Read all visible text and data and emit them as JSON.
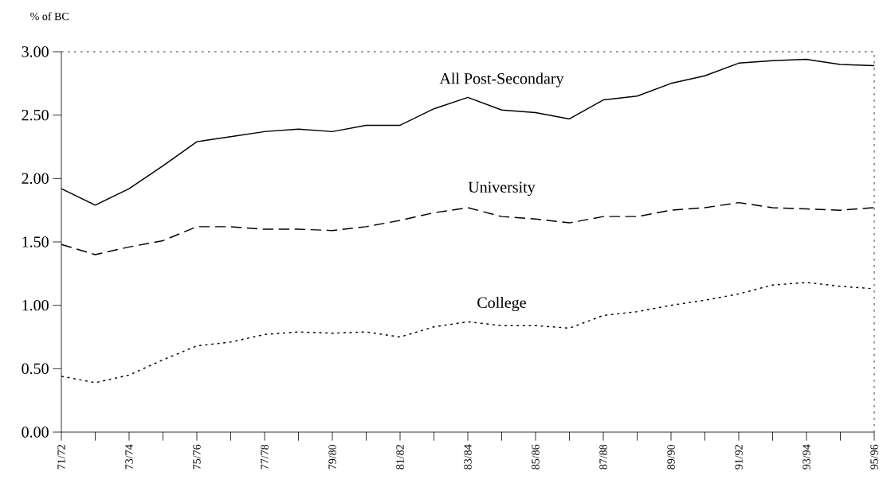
{
  "chart_data": {
    "type": "line",
    "ylabel": "% of BC",
    "categories": [
      "71/72",
      null,
      "73/74",
      null,
      "75/76",
      null,
      "77/78",
      null,
      "79/80",
      null,
      "81/82",
      null,
      "83/84",
      null,
      "85/86",
      null,
      "87/88",
      null,
      "89/90",
      null,
      "91/92",
      null,
      "93/94",
      null,
      "95/96"
    ],
    "ylim": [
      0,
      3
    ],
    "yticks": [
      {
        "value": 0,
        "label": "0.00"
      },
      {
        "value": 0.5,
        "label": "0.50"
      },
      {
        "value": 1,
        "label": "1.00"
      },
      {
        "value": 1.5,
        "label": "1.50"
      },
      {
        "value": 2,
        "label": "2.00"
      },
      {
        "value": 2.5,
        "label": "2.50"
      },
      {
        "value": 3,
        "label": "3.00"
      }
    ],
    "grid": false,
    "legend": false,
    "marker": "none",
    "series": [
      {
        "name": "All Post-Secondary",
        "color": "#000000",
        "line_style": "solid",
        "values": [
          1.92,
          1.79,
          1.92,
          2.1,
          2.29,
          2.33,
          2.37,
          2.39,
          2.37,
          2.42,
          2.42,
          2.55,
          2.64,
          2.54,
          2.52,
          2.47,
          2.62,
          2.65,
          2.75,
          2.81,
          2.91,
          2.93,
          2.94,
          2.9,
          2.89
        ]
      },
      {
        "name": "University",
        "color": "#000000",
        "line_style": "dashed",
        "values": [
          1.48,
          1.4,
          1.46,
          1.51,
          1.62,
          1.62,
          1.6,
          1.6,
          1.59,
          1.62,
          1.67,
          1.73,
          1.77,
          1.7,
          1.68,
          1.65,
          1.7,
          1.7,
          1.75,
          1.77,
          1.81,
          1.77,
          1.76,
          1.75,
          1.77
        ]
      },
      {
        "name": "College",
        "color": "#000000",
        "line_style": "dotted",
        "values": [
          0.44,
          0.39,
          0.45,
          0.57,
          0.68,
          0.71,
          0.77,
          0.79,
          0.78,
          0.79,
          0.75,
          0.83,
          0.87,
          0.84,
          0.84,
          0.82,
          0.92,
          0.95,
          1.0,
          1.04,
          1.09,
          1.16,
          1.18,
          1.15,
          1.13
        ]
      }
    ]
  }
}
